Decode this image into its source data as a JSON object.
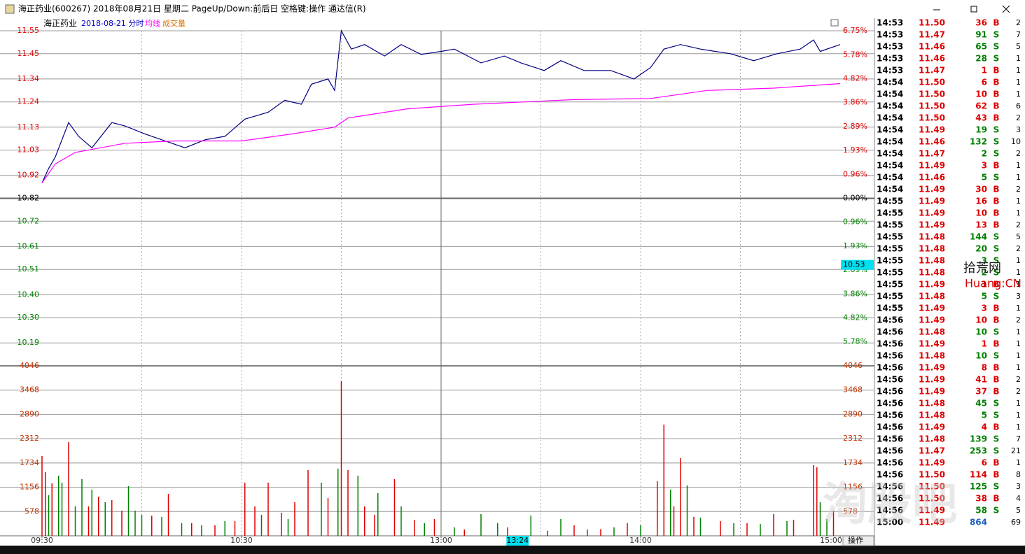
{
  "window": {
    "title": "海正药业(600267) 2018年08月21日 星期二 PageUp/Down:前后日 空格键:操作 通达信(R)"
  },
  "chart_data": {
    "type": "line",
    "title": "海正药业",
    "subtitle": "2018-08-21 分时",
    "avg_label": "均线",
    "volume_label": "成交量",
    "xlim": [
      0,
      240
    ],
    "xticks": [
      {
        "value": 0,
        "label": "09:30"
      },
      {
        "value": 60,
        "label": "10:30"
      },
      {
        "value": 120,
        "label": "13:00"
      },
      {
        "value": 180,
        "label": "14:00"
      },
      {
        "value": 240,
        "label": "15:00"
      }
    ],
    "cursor_x": {
      "value": 143,
      "label": "13:24"
    },
    "cursor_y": {
      "value": 10.53,
      "label": "10.53"
    },
    "ylim": [
      10.09,
      11.55
    ],
    "yticks": [
      11.55,
      11.45,
      11.34,
      11.24,
      11.13,
      11.03,
      10.92,
      10.82,
      10.72,
      10.61,
      10.51,
      {
        "value": 10.4,
        "label": "10.40"
      },
      {
        "value": 10.3,
        "label": "10.30"
      },
      10.19
    ],
    "y2lim": [
      -6.75,
      6.75
    ],
    "y2ticks": [
      {
        "value": 6.75,
        "label": "6.75%"
      },
      {
        "value": 5.78,
        "label": "5.78%"
      },
      {
        "value": 4.82,
        "label": "4.82%"
      },
      {
        "value": 3.86,
        "label": "3.86%"
      },
      {
        "value": 2.89,
        "label": "2.89%"
      },
      {
        "value": 1.93,
        "label": "1.93%"
      },
      {
        "value": 0.96,
        "label": "0.96%"
      },
      {
        "value": 0,
        "label": "0.00%"
      },
      {
        "value": -0.96,
        "label": "0.96%"
      },
      {
        "value": -1.93,
        "label": "1.93%"
      },
      {
        "value": -2.89,
        "label": "2.89%"
      },
      {
        "value": -3.86,
        "label": "3.86%"
      },
      {
        "value": -4.82,
        "label": "4.82%"
      },
      {
        "value": -5.78,
        "label": "5.78%"
      }
    ],
    "grid": true,
    "series": [
      {
        "name": "价格",
        "color": "#000080",
        "x": [
          0,
          2,
          4,
          8,
          11,
          15,
          21,
          25,
          31,
          36,
          43,
          49,
          55,
          61,
          68,
          73,
          78,
          81,
          86,
          88,
          90,
          93,
          97,
          103,
          108,
          114,
          120,
          124,
          132,
          139,
          144,
          151,
          156,
          163,
          171,
          178,
          183,
          187,
          192,
          198,
          207,
          214,
          221,
          228,
          232,
          234,
          240
        ],
        "values": [
          10.887,
          10.95,
          11.0,
          11.15,
          11.09,
          11.04,
          11.15,
          11.135,
          11.1,
          11.075,
          11.04,
          11.075,
          11.09,
          11.165,
          11.195,
          11.247,
          11.23,
          11.317,
          11.34,
          11.29,
          11.55,
          11.47,
          11.49,
          11.44,
          11.49,
          11.447,
          11.46,
          11.47,
          11.41,
          11.44,
          11.41,
          11.377,
          11.42,
          11.377,
          11.377,
          11.34,
          11.39,
          11.47,
          11.49,
          11.47,
          11.45,
          11.42,
          11.45,
          11.47,
          11.51,
          11.46,
          11.49
        ]
      },
      {
        "name": "均线",
        "color": "#ff00ff",
        "x": [
          0,
          4,
          10,
          25,
          40,
          60,
          75,
          88,
          92,
          110,
          130,
          160,
          183,
          200,
          220,
          240
        ],
        "values": [
          10.887,
          10.97,
          11.02,
          11.06,
          11.07,
          11.07,
          11.1,
          11.13,
          11.17,
          11.21,
          11.23,
          11.25,
          11.255,
          11.29,
          11.3,
          11.32
        ]
      }
    ],
    "volume": {
      "ylim": [
        0,
        4046
      ],
      "yticks": [
        578,
        1156,
        1734,
        2312,
        2890,
        3468,
        4046
      ],
      "series": [
        {
          "name": "up",
          "color": "#e00000",
          "x": [
            0,
            1,
            3,
            8,
            14,
            17,
            21,
            24,
            33,
            38,
            45,
            52,
            58,
            61,
            64,
            68,
            72,
            76,
            80,
            86,
            90,
            92,
            97,
            100,
            106,
            112,
            118,
            127,
            140,
            152,
            160,
            168,
            176,
            185,
            187,
            190,
            192,
            196,
            204,
            212,
            220,
            226,
            232,
            233,
            238
          ],
          "values": [
            1900,
            1515,
            1250,
            2231,
            700,
            932,
            849,
            600,
            480,
            1000,
            300,
            250,
            350,
            1265,
            700,
            1265,
            550,
            800,
            1565,
            900,
            3680,
            1565,
            700,
            500,
            1349,
            380,
            400,
            150,
            200,
            120,
            250,
            160,
            300,
            1300,
            2647,
            700,
            1848,
            450,
            350,
            300,
            520,
            380,
            1682,
            1632,
            600
          ]
        },
        {
          "name": "down",
          "color": "#008000",
          "x": [
            2,
            5,
            6,
            10,
            12,
            15,
            19,
            26,
            28,
            30,
            36,
            42,
            48,
            55,
            66,
            74,
            84,
            89,
            95,
            101,
            108,
            115,
            124,
            132,
            137,
            147,
            156,
            164,
            172,
            180,
            189,
            194,
            198,
            208,
            216,
            224,
            234,
            236
          ],
          "values": [
            966,
            1432,
            1265,
            700,
            1349,
            1099,
            800,
            1182,
            600,
            500,
            450,
            300,
            250,
            350,
            500,
            400,
            1265,
            1598,
            1432,
            1016,
            700,
            300,
            200,
            516,
            300,
            483,
            400,
            150,
            200,
            250,
            1099,
            1200,
            433,
            300,
            280,
            350,
            799,
            400
          ]
        }
      ]
    }
  },
  "trades": [
    {
      "time": "14:53",
      "price": "11.50",
      "volume": "36",
      "side": "B",
      "count": "2"
    },
    {
      "time": "14:53",
      "price": "11.47",
      "volume": "91",
      "side": "S",
      "count": "7"
    },
    {
      "time": "14:53",
      "price": "11.46",
      "volume": "65",
      "side": "S",
      "count": "5"
    },
    {
      "time": "14:53",
      "price": "11.46",
      "volume": "28",
      "side": "S",
      "count": "1"
    },
    {
      "time": "14:53",
      "price": "11.47",
      "volume": "1",
      "side": "B",
      "count": "1"
    },
    {
      "time": "14:54",
      "price": "11.50",
      "volume": "6",
      "side": "B",
      "count": "1"
    },
    {
      "time": "14:54",
      "price": "11.50",
      "volume": "10",
      "side": "B",
      "count": "1"
    },
    {
      "time": "14:54",
      "price": "11.50",
      "volume": "62",
      "side": "B",
      "count": "6"
    },
    {
      "time": "14:54",
      "price": "11.50",
      "volume": "43",
      "side": "B",
      "count": "2"
    },
    {
      "time": "14:54",
      "price": "11.49",
      "volume": "19",
      "side": "S",
      "count": "3"
    },
    {
      "time": "14:54",
      "price": "11.46",
      "volume": "132",
      "side": "S",
      "count": "10"
    },
    {
      "time": "14:54",
      "price": "11.47",
      "volume": "2",
      "side": "S",
      "count": "2"
    },
    {
      "time": "14:54",
      "price": "11.49",
      "volume": "3",
      "side": "B",
      "count": "1"
    },
    {
      "time": "14:54",
      "price": "11.46",
      "volume": "5",
      "side": "S",
      "count": "1"
    },
    {
      "time": "14:54",
      "price": "11.49",
      "volume": "30",
      "side": "B",
      "count": "2"
    },
    {
      "time": "14:55",
      "price": "11.49",
      "volume": "16",
      "side": "B",
      "count": "1"
    },
    {
      "time": "14:55",
      "price": "11.49",
      "volume": "10",
      "side": "B",
      "count": "1"
    },
    {
      "time": "14:55",
      "price": "11.49",
      "volume": "13",
      "side": "B",
      "count": "2"
    },
    {
      "time": "14:55",
      "price": "11.48",
      "volume": "144",
      "side": "S",
      "count": "5"
    },
    {
      "time": "14:55",
      "price": "11.48",
      "volume": "20",
      "side": "S",
      "count": "2"
    },
    {
      "time": "14:55",
      "price": "11.48",
      "volume": "3",
      "side": "S",
      "count": "1"
    },
    {
      "time": "14:55",
      "price": "11.48",
      "volume": "2",
      "side": "S",
      "count": "1"
    },
    {
      "time": "14:55",
      "price": "11.49",
      "volume": "1",
      "side": "B",
      "count": "1"
    },
    {
      "time": "14:55",
      "price": "11.48",
      "volume": "5",
      "side": "S",
      "count": "3"
    },
    {
      "time": "14:55",
      "price": "11.49",
      "volume": "3",
      "side": "B",
      "count": "1"
    },
    {
      "time": "14:56",
      "price": "11.49",
      "volume": "10",
      "side": "B",
      "count": "2"
    },
    {
      "time": "14:56",
      "price": "11.48",
      "volume": "10",
      "side": "S",
      "count": "1"
    },
    {
      "time": "14:56",
      "price": "11.49",
      "volume": "1",
      "side": "B",
      "count": "1"
    },
    {
      "time": "14:56",
      "price": "11.48",
      "volume": "10",
      "side": "S",
      "count": "1"
    },
    {
      "time": "14:56",
      "price": "11.49",
      "volume": "8",
      "side": "B",
      "count": "1"
    },
    {
      "time": "14:56",
      "price": "11.49",
      "volume": "41",
      "side": "B",
      "count": "2"
    },
    {
      "time": "14:56",
      "price": "11.49",
      "volume": "37",
      "side": "B",
      "count": "2"
    },
    {
      "time": "14:56",
      "price": "11.48",
      "volume": "45",
      "side": "S",
      "count": "1"
    },
    {
      "time": "14:56",
      "price": "11.48",
      "volume": "5",
      "side": "S",
      "count": "1"
    },
    {
      "time": "14:56",
      "price": "11.49",
      "volume": "4",
      "side": "B",
      "count": "1"
    },
    {
      "time": "14:56",
      "price": "11.48",
      "volume": "139",
      "side": "S",
      "count": "7"
    },
    {
      "time": "14:56",
      "price": "11.47",
      "volume": "253",
      "side": "S",
      "count": "21"
    },
    {
      "time": "14:56",
      "price": "11.49",
      "volume": "6",
      "side": "B",
      "count": "1"
    },
    {
      "time": "14:56",
      "price": "11.50",
      "volume": "114",
      "side": "B",
      "count": "8"
    },
    {
      "time": "14:56",
      "price": "11.50",
      "volume": "125",
      "side": "S",
      "count": "3"
    },
    {
      "time": "14:56",
      "price": "11.50",
      "volume": "38",
      "side": "B",
      "count": "4"
    },
    {
      "time": "14:56",
      "price": "11.49",
      "volume": "58",
      "side": "S",
      "count": "5"
    },
    {
      "time": "15:00",
      "price": "11.49",
      "volume": "864",
      "count": "69"
    }
  ],
  "button": "操作",
  "watermark": {
    "logo": "拾荒网",
    "site": "Huang:CN",
    "mark": "淘股吧"
  }
}
